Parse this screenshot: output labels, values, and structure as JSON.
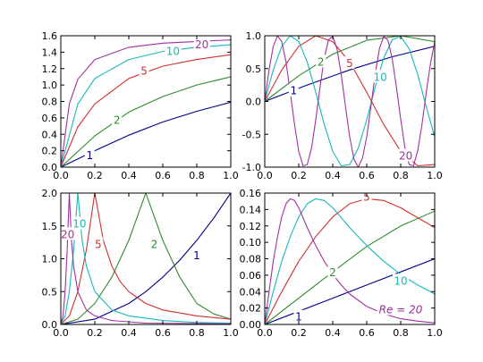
{
  "colors": {
    "1": "#00008b",
    "2": "#2e8b2e",
    "5": "#d03030",
    "10": "#18b8b8",
    "20": "#a030a0"
  },
  "chart_data": [
    {
      "type": "line",
      "panel": "top-left",
      "xlim": [
        0,
        1
      ],
      "ylim": [
        0,
        1.6
      ],
      "xticks": [
        "0.0",
        "0.2",
        "0.4",
        "0.6",
        "0.8",
        "1.0"
      ],
      "yticks": [
        "0.0",
        "0.2",
        "0.4",
        "0.6",
        "0.8",
        "1.0",
        "1.2",
        "1.4",
        "1.6"
      ],
      "grid": false,
      "series": [
        {
          "label": "1",
          "x": [
            0,
            0.2,
            0.4,
            0.6,
            0.8,
            1.0
          ],
          "y": [
            0,
            0.2,
            0.39,
            0.55,
            0.68,
            0.79
          ]
        },
        {
          "label": "2",
          "x": [
            0,
            0.2,
            0.4,
            0.6,
            0.8,
            1.0
          ],
          "y": [
            0,
            0.38,
            0.67,
            0.86,
            1.0,
            1.1
          ]
        },
        {
          "label": "5",
          "x": [
            0,
            0.1,
            0.2,
            0.4,
            0.6,
            0.8,
            1.0
          ],
          "y": [
            0,
            0.49,
            0.77,
            1.08,
            1.23,
            1.31,
            1.37
          ]
        },
        {
          "label": "10",
          "x": [
            0,
            0.1,
            0.2,
            0.4,
            0.6,
            0.8,
            1.0
          ],
          "y": [
            0,
            0.77,
            1.08,
            1.31,
            1.41,
            1.46,
            1.49
          ]
        },
        {
          "label": "20",
          "x": [
            0,
            0.05,
            0.1,
            0.2,
            0.4,
            0.6,
            0.8,
            1.0
          ],
          "y": [
            0,
            0.77,
            1.07,
            1.31,
            1.46,
            1.51,
            1.53,
            1.55
          ]
        }
      ],
      "curve_labels": [
        {
          "text": "1",
          "x": 0.17,
          "y": 0.14
        },
        {
          "text": "2",
          "x": 0.33,
          "y": 0.57
        },
        {
          "text": "5",
          "x": 0.49,
          "y": 1.17
        },
        {
          "text": "10",
          "x": 0.66,
          "y": 1.41
        },
        {
          "text": "20",
          "x": 0.83,
          "y": 1.49
        }
      ]
    },
    {
      "type": "line",
      "panel": "top-right",
      "xlim": [
        0,
        1
      ],
      "ylim": [
        -1,
        1
      ],
      "xticks": [
        "0.0",
        "0.2",
        "0.4",
        "0.6",
        "0.8",
        "1.0"
      ],
      "yticks": [
        "-1.0",
        "-0.5",
        "0.0",
        "0.5",
        "1.0"
      ],
      "grid": false,
      "series": [
        {
          "label": "1",
          "x": [
            0,
            0.25,
            0.5,
            0.75,
            1.0
          ],
          "y": [
            0,
            0.25,
            0.48,
            0.68,
            0.84
          ]
        },
        {
          "label": "2",
          "x": [
            0,
            0.2,
            0.4,
            0.6,
            0.8,
            1.0
          ],
          "y": [
            0,
            0.39,
            0.72,
            0.93,
            1.0,
            0.91
          ]
        },
        {
          "label": "5",
          "x": [
            0,
            0.1,
            0.2,
            0.3,
            0.4,
            0.5,
            0.6,
            0.7,
            0.8,
            0.9,
            1.0
          ],
          "y": [
            0,
            0.48,
            0.84,
            1.0,
            0.91,
            0.6,
            0.14,
            -0.35,
            -0.76,
            -0.98,
            -0.96
          ]
        },
        {
          "label": "10",
          "x": [
            0,
            0.05,
            0.1,
            0.15,
            0.2,
            0.25,
            0.3,
            0.35,
            0.4,
            0.45,
            0.5,
            0.55,
            0.6,
            0.65,
            0.7,
            0.75,
            0.8,
            0.85,
            0.9,
            0.95,
            1.0
          ],
          "y": [
            0,
            0.48,
            0.84,
            1.0,
            0.91,
            0.6,
            0.14,
            -0.35,
            -0.76,
            -0.98,
            -0.96,
            -0.71,
            -0.28,
            0.22,
            0.66,
            0.94,
            0.99,
            0.8,
            0.41,
            -0.08,
            -0.54
          ]
        },
        {
          "label": "20",
          "x": [
            0,
            0.025,
            0.05,
            0.075,
            0.1,
            0.125,
            0.15,
            0.175,
            0.2,
            0.225,
            0.25,
            0.275,
            0.3,
            0.325,
            0.35,
            0.375,
            0.4,
            0.425,
            0.45,
            0.475,
            0.5,
            0.525,
            0.55,
            0.575,
            0.6,
            0.625,
            0.65,
            0.675,
            0.7,
            0.725,
            0.75,
            0.775,
            0.8,
            0.825,
            0.85,
            0.875,
            0.9,
            0.925,
            0.95,
            0.975,
            1.0
          ],
          "y": [
            0,
            0.48,
            0.84,
            1.0,
            0.91,
            0.6,
            0.14,
            -0.35,
            -0.76,
            -0.98,
            -0.96,
            -0.71,
            -0.28,
            0.22,
            0.66,
            0.94,
            0.99,
            0.8,
            0.41,
            -0.08,
            -0.54,
            -0.88,
            -1.0,
            -0.86,
            -0.54,
            -0.07,
            0.42,
            0.81,
            0.99,
            0.93,
            0.65,
            0.21,
            -0.27,
            -0.71,
            -0.96,
            -0.98,
            -0.75,
            -0.35,
            0.13,
            0.58,
            0.91
          ]
        }
      ],
      "curve_labels": [
        {
          "text": "1",
          "x": 0.17,
          "y": 0.16
        },
        {
          "text": "2",
          "x": 0.33,
          "y": 0.6
        },
        {
          "text": "5",
          "x": 0.5,
          "y": 0.58
        },
        {
          "text": "10",
          "x": 0.68,
          "y": 0.37
        },
        {
          "text": "20",
          "x": 0.83,
          "y": -0.83
        }
      ]
    },
    {
      "type": "line",
      "panel": "bottom-left",
      "xlim": [
        0,
        1
      ],
      "ylim": [
        0,
        2
      ],
      "xticks": [
        "0.0",
        "0.2",
        "0.4",
        "0.6",
        "0.8",
        "1.0"
      ],
      "yticks": [
        "0.0",
        "0.5",
        "1.0",
        "1.5",
        "2.0"
      ],
      "grid": false,
      "series": [
        {
          "label": "1",
          "x": [
            0,
            0.2,
            0.4,
            0.5,
            0.6,
            0.7,
            0.8,
            0.9,
            1.0
          ],
          "y": [
            0,
            0.08,
            0.32,
            0.5,
            0.72,
            0.98,
            1.28,
            1.62,
            2.0
          ]
        },
        {
          "label": "2",
          "x": [
            0,
            0.1,
            0.2,
            0.3,
            0.4,
            0.5,
            0.6,
            0.7,
            0.8,
            0.9,
            1.0
          ],
          "y": [
            0,
            0.08,
            0.32,
            0.72,
            1.28,
            2.0,
            1.28,
            0.72,
            0.32,
            0.16,
            0.08
          ]
        },
        {
          "label": "5",
          "x": [
            0,
            0.05,
            0.1,
            0.15,
            0.2,
            0.25,
            0.3,
            0.35,
            0.4,
            0.5,
            0.6,
            0.8,
            1.0
          ],
          "y": [
            0,
            0.13,
            0.5,
            1.13,
            2.0,
            1.28,
            0.89,
            0.65,
            0.5,
            0.32,
            0.22,
            0.13,
            0.08
          ]
        },
        {
          "label": "10",
          "x": [
            0,
            0.025,
            0.05,
            0.075,
            0.1,
            0.125,
            0.15,
            0.2,
            0.3,
            0.4,
            0.6,
            0.8,
            1.0
          ],
          "y": [
            0,
            0.13,
            0.5,
            1.13,
            2.0,
            1.28,
            0.89,
            0.5,
            0.22,
            0.13,
            0.06,
            0.03,
            0.02
          ]
        },
        {
          "label": "20",
          "x": [
            0,
            0.0125,
            0.025,
            0.0375,
            0.05,
            0.0625,
            0.075,
            0.1,
            0.15,
            0.2,
            0.3,
            0.5,
            1.0
          ],
          "y": [
            0,
            0.13,
            0.5,
            1.13,
            2.0,
            1.28,
            0.89,
            0.5,
            0.22,
            0.13,
            0.06,
            0.02,
            0.01
          ]
        }
      ],
      "curve_labels": [
        {
          "text": "1",
          "x": 0.8,
          "y": 1.05
        },
        {
          "text": "2",
          "x": 0.55,
          "y": 1.22
        },
        {
          "text": "5",
          "x": 0.22,
          "y": 1.22
        },
        {
          "text": "10",
          "x": 0.11,
          "y": 1.53
        },
        {
          "text": "20",
          "x": 0.04,
          "y": 1.37
        }
      ]
    },
    {
      "type": "line",
      "panel": "bottom-right",
      "xlim": [
        0,
        1
      ],
      "ylim": [
        0,
        0.16
      ],
      "xticks": [
        "0.0",
        "0.2",
        "0.4",
        "0.6",
        "0.8",
        "1.0"
      ],
      "yticks": [
        "0.00",
        "0.02",
        "0.04",
        "0.06",
        "0.08",
        "0.10",
        "0.12",
        "0.14",
        "0.16"
      ],
      "grid": false,
      "series": [
        {
          "label": "1",
          "x": [
            0,
            0.2,
            0.4,
            0.6,
            0.8,
            1.0
          ],
          "y": [
            0,
            0.016,
            0.032,
            0.048,
            0.064,
            0.08
          ]
        },
        {
          "label": "2",
          "x": [
            0,
            0.2,
            0.4,
            0.6,
            0.8,
            1.0
          ],
          "y": [
            0,
            0.032,
            0.064,
            0.095,
            0.12,
            0.138
          ]
        },
        {
          "label": "5",
          "x": [
            0,
            0.1,
            0.2,
            0.3,
            0.4,
            0.5,
            0.6,
            0.7,
            0.8,
            0.9,
            1.0
          ],
          "y": [
            0,
            0.04,
            0.077,
            0.107,
            0.131,
            0.147,
            0.153,
            0.151,
            0.142,
            0.13,
            0.118
          ]
        },
        {
          "label": "10",
          "x": [
            0,
            0.05,
            0.1,
            0.15,
            0.2,
            0.25,
            0.3,
            0.35,
            0.4,
            0.5,
            0.6,
            0.7,
            0.8,
            0.9,
            1.0
          ],
          "y": [
            0,
            0.04,
            0.077,
            0.107,
            0.131,
            0.147,
            0.153,
            0.151,
            0.142,
            0.118,
            0.096,
            0.077,
            0.061,
            0.048,
            0.037
          ]
        },
        {
          "label": "20",
          "x": [
            0,
            0.025,
            0.05,
            0.075,
            0.1,
            0.125,
            0.15,
            0.175,
            0.2,
            0.25,
            0.3,
            0.35,
            0.4,
            0.45,
            0.5,
            0.6,
            0.7,
            0.8,
            0.9,
            1.0
          ],
          "y": [
            0,
            0.04,
            0.077,
            0.107,
            0.131,
            0.147,
            0.153,
            0.151,
            0.142,
            0.118,
            0.096,
            0.077,
            0.061,
            0.048,
            0.037,
            0.022,
            0.013,
            0.007,
            0.004,
            0.002
          ]
        }
      ],
      "curve_labels": [
        {
          "text": "1",
          "x": 0.2,
          "y": 0.009
        },
        {
          "text": "2",
          "x": 0.4,
          "y": 0.063
        },
        {
          "text": "5",
          "x": 0.6,
          "y": 0.155
        },
        {
          "text": "10",
          "x": 0.8,
          "y": 0.053
        },
        {
          "text": "Re = 20",
          "x": 0.8,
          "y": 0.018
        }
      ]
    }
  ]
}
